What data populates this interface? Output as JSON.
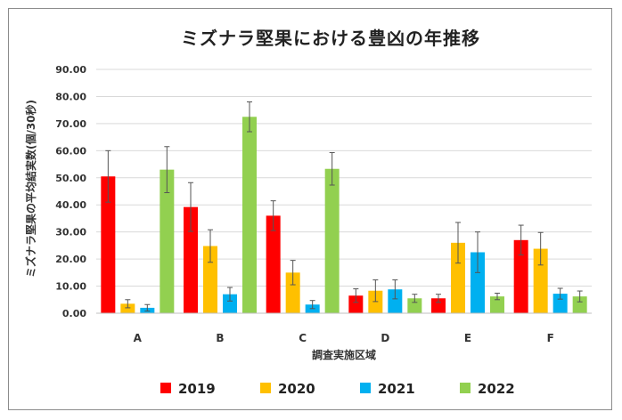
{
  "chart_data": {
    "type": "bar",
    "title": "ミズナラ堅果における豊凶の年推移",
    "xlabel": "調査実施区域",
    "ylabel": "ミズナラ堅果の平均結実数(個/30秒)",
    "categories": [
      "A",
      "B",
      "C",
      "D",
      "E",
      "F"
    ],
    "ylim": [
      0,
      90
    ],
    "ytick_labels": [
      "0.00",
      "10.00",
      "20.00",
      "30.00",
      "40.00",
      "50.00",
      "60.00",
      "70.00",
      "80.00",
      "90.00"
    ],
    "grid": true,
    "legend_position": "bottom",
    "series": [
      {
        "name": "2019",
        "color": "#ff0000",
        "values": [
          50.5,
          39.2,
          36.0,
          6.5,
          5.5,
          27.0
        ],
        "errors": [
          9.5,
          9.0,
          5.5,
          2.5,
          1.5,
          5.5
        ]
      },
      {
        "name": "2020",
        "color": "#ffc000",
        "values": [
          3.5,
          24.8,
          15.0,
          8.3,
          26.0,
          23.8
        ],
        "errors": [
          1.5,
          6.0,
          4.5,
          4.0,
          7.5,
          6.0
        ]
      },
      {
        "name": "2021",
        "color": "#00b0f0",
        "values": [
          2.0,
          7.0,
          3.2,
          8.8,
          22.5,
          7.2
        ],
        "errors": [
          1.2,
          2.5,
          1.5,
          3.5,
          7.5,
          2.0
        ]
      },
      {
        "name": "2022",
        "color": "#92d050",
        "values": [
          53.0,
          72.5,
          53.3,
          5.5,
          6.2,
          6.2
        ],
        "errors": [
          8.5,
          5.5,
          6.0,
          1.5,
          1.2,
          2.0
        ]
      }
    ]
  }
}
